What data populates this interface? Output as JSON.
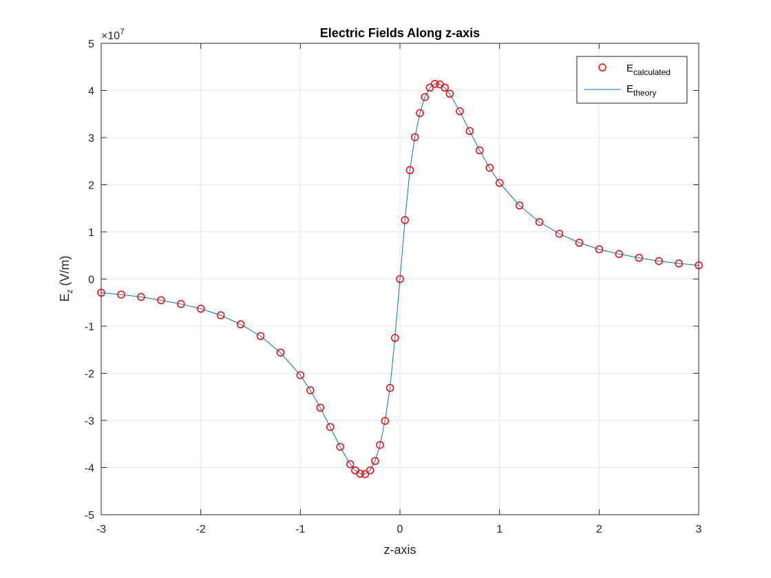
{
  "chart_data": {
    "type": "scatter",
    "title": "Electric Fields Along z-axis",
    "xlabel": "z-axis",
    "ylabel": {
      "main": "E",
      "sub": "z",
      "unit": " (V/m)"
    },
    "y_exponent": {
      "prefix": "×10",
      "power": "7"
    },
    "xlim": [
      -3,
      3
    ],
    "ylim": [
      -5,
      5
    ],
    "xticks": [
      -3,
      -2,
      -1,
      0,
      1,
      2,
      3
    ],
    "yticks": [
      -5,
      -4,
      -3,
      -2,
      -1,
      0,
      1,
      2,
      3,
      4,
      5
    ],
    "grid": true,
    "legend_position": "top-right",
    "series": [
      {
        "name": {
          "main": "E",
          "sub": "calculated"
        },
        "style": "markers",
        "marker": "circle",
        "color": "#ff0000",
        "x": [
          -3.0,
          -2.8,
          -2.6,
          -2.4,
          -2.2,
          -2.0,
          -1.8,
          -1.6,
          -1.4,
          -1.2,
          -1.0,
          -0.9,
          -0.8,
          -0.7,
          -0.6,
          -0.5,
          -0.45,
          -0.4,
          -0.35,
          -0.3,
          -0.25,
          -0.2,
          -0.15,
          -0.1,
          -0.05,
          0.0,
          0.05,
          0.1,
          0.15,
          0.2,
          0.25,
          0.3,
          0.35,
          0.4,
          0.45,
          0.5,
          0.6,
          0.7,
          0.8,
          0.9,
          1.0,
          1.2,
          1.4,
          1.6,
          1.8,
          2.0,
          2.2,
          2.4,
          2.6,
          2.8,
          3.0
        ],
        "y": [
          -0.29,
          -0.33,
          -0.38,
          -0.45,
          -0.53,
          -0.63,
          -0.77,
          -0.96,
          -1.21,
          -1.56,
          -2.04,
          -2.36,
          -2.73,
          -3.14,
          -3.56,
          -3.93,
          -4.06,
          -4.13,
          -4.14,
          -4.06,
          -3.86,
          -3.52,
          -3.01,
          -2.31,
          -1.25,
          0.0,
          1.25,
          2.31,
          3.01,
          3.52,
          3.86,
          4.06,
          4.14,
          4.13,
          4.06,
          3.93,
          3.56,
          3.14,
          2.73,
          2.36,
          2.04,
          1.56,
          1.21,
          0.96,
          0.77,
          0.63,
          0.53,
          0.45,
          0.38,
          0.33,
          0.29
        ]
      },
      {
        "name": {
          "main": "E",
          "sub": "theory"
        },
        "style": "line",
        "color": "#0072bd",
        "x": [
          -3.0,
          -2.8,
          -2.6,
          -2.4,
          -2.2,
          -2.0,
          -1.8,
          -1.6,
          -1.4,
          -1.2,
          -1.0,
          -0.9,
          -0.8,
          -0.7,
          -0.6,
          -0.5,
          -0.45,
          -0.4,
          -0.35,
          -0.3,
          -0.25,
          -0.2,
          -0.15,
          -0.1,
          -0.05,
          0.0,
          0.05,
          0.1,
          0.15,
          0.2,
          0.25,
          0.3,
          0.35,
          0.4,
          0.45,
          0.5,
          0.6,
          0.7,
          0.8,
          0.9,
          1.0,
          1.2,
          1.4,
          1.6,
          1.8,
          2.0,
          2.2,
          2.4,
          2.6,
          2.8,
          3.0
        ],
        "y": [
          -0.29,
          -0.33,
          -0.38,
          -0.45,
          -0.53,
          -0.63,
          -0.77,
          -0.96,
          -1.21,
          -1.56,
          -2.04,
          -2.36,
          -2.73,
          -3.14,
          -3.56,
          -3.93,
          -4.06,
          -4.13,
          -4.14,
          -4.06,
          -3.86,
          -3.52,
          -3.01,
          -2.31,
          -1.25,
          0.0,
          1.25,
          2.31,
          3.01,
          3.52,
          3.86,
          4.06,
          4.14,
          4.13,
          4.06,
          3.93,
          3.56,
          3.14,
          2.73,
          2.36,
          2.04,
          1.56,
          1.21,
          0.96,
          0.77,
          0.63,
          0.53,
          0.45,
          0.38,
          0.33,
          0.29
        ]
      }
    ]
  }
}
